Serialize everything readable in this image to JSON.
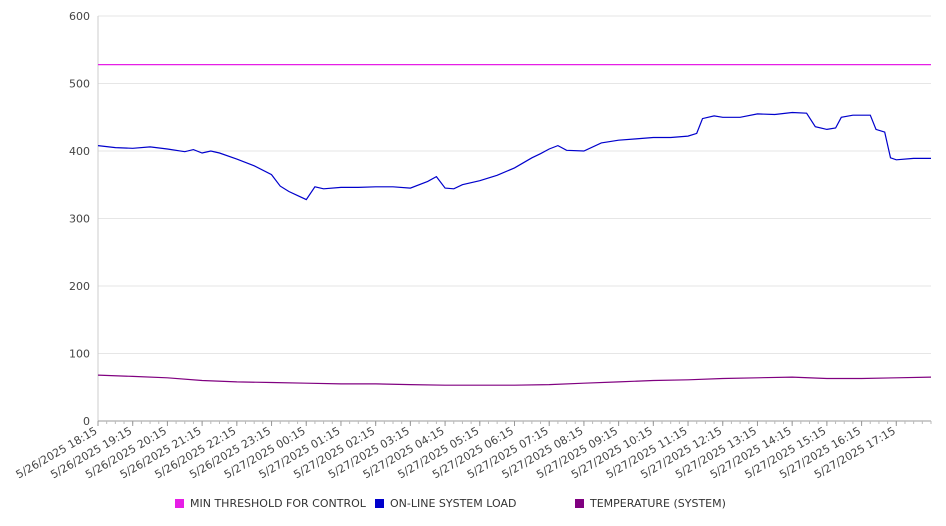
{
  "chart_data": {
    "type": "line",
    "title": "",
    "xlabel": "",
    "ylabel": "",
    "ylim": [
      0,
      600
    ],
    "yticks": [
      "0",
      "100",
      "200",
      "300",
      "400",
      "500",
      "600"
    ],
    "grid": true,
    "legend_position": "bottom",
    "xtick_labels": [
      "5/26/2025 18:15",
      "5/26/2025 19:15",
      "5/26/2025 20:15",
      "5/26/2025 21:15",
      "5/26/2025 22:15",
      "5/26/2025 23:15",
      "5/27/2025 00:15",
      "5/27/2025 01:15",
      "5/27/2025 02:15",
      "5/27/2025 03:15",
      "5/27/2025 04:15",
      "5/27/2025 05:15",
      "5/27/2025 06:15",
      "5/27/2025 07:15",
      "5/27/2025 08:15",
      "5/27/2025 09:15",
      "5/27/2025 10:15",
      "5/27/2025 11:15",
      "5/27/2025 12:15",
      "5/27/2025 13:15",
      "5/27/2025 14:15",
      "5/27/2025 15:15",
      "5/27/2025 16:15",
      "5/27/2025 17:15"
    ],
    "x_range": [
      "5/26/2025 18:15",
      "5/27/2025 18:15"
    ],
    "series": [
      {
        "name": "MIN THRESHOLD FOR CONTROL",
        "color": "#e61ee6",
        "points": [
          [
            "5/26/2025 18:15",
            528
          ],
          [
            "5/27/2025 18:15",
            528
          ]
        ]
      },
      {
        "name": "ON-LINE SYSTEM LOAD",
        "color": "#0000cc",
        "points": [
          [
            "5/26/2025 18:15",
            408
          ],
          [
            "5/26/2025 18:45",
            405
          ],
          [
            "5/26/2025 19:15",
            404
          ],
          [
            "5/26/2025 19:45",
            406
          ],
          [
            "5/26/2025 20:15",
            403
          ],
          [
            "5/26/2025 20:45",
            399
          ],
          [
            "5/26/2025 21:00",
            402
          ],
          [
            "5/26/2025 21:15",
            397
          ],
          [
            "5/26/2025 21:30",
            400
          ],
          [
            "5/26/2025 21:45",
            397
          ],
          [
            "5/26/2025 22:15",
            388
          ],
          [
            "5/26/2025 22:45",
            378
          ],
          [
            "5/26/2025 23:15",
            365
          ],
          [
            "5/26/2025 23:30",
            348
          ],
          [
            "5/26/2025 23:45",
            340
          ],
          [
            "5/27/2025 00:00",
            334
          ],
          [
            "5/27/2025 00:15",
            328
          ],
          [
            "5/27/2025 00:30",
            347
          ],
          [
            "5/27/2025 00:45",
            344
          ],
          [
            "5/27/2025 01:15",
            346
          ],
          [
            "5/27/2025 01:45",
            346
          ],
          [
            "5/27/2025 02:15",
            347
          ],
          [
            "5/27/2025 02:45",
            347
          ],
          [
            "5/27/2025 03:15",
            345
          ],
          [
            "5/27/2025 03:45",
            355
          ],
          [
            "5/27/2025 04:00",
            362
          ],
          [
            "5/27/2025 04:15",
            345
          ],
          [
            "5/27/2025 04:30",
            344
          ],
          [
            "5/27/2025 04:45",
            350
          ],
          [
            "5/27/2025 05:15",
            356
          ],
          [
            "5/27/2025 05:45",
            364
          ],
          [
            "5/27/2025 06:15",
            375
          ],
          [
            "5/27/2025 06:45",
            390
          ],
          [
            "5/27/2025 07:00",
            396
          ],
          [
            "5/27/2025 07:15",
            403
          ],
          [
            "5/27/2025 07:30",
            408
          ],
          [
            "5/27/2025 07:45",
            401
          ],
          [
            "5/27/2025 08:15",
            400
          ],
          [
            "5/27/2025 08:45",
            412
          ],
          [
            "5/27/2025 09:15",
            416
          ],
          [
            "5/27/2025 09:45",
            418
          ],
          [
            "5/27/2025 10:15",
            420
          ],
          [
            "5/27/2025 10:45",
            420
          ],
          [
            "5/27/2025 11:15",
            422
          ],
          [
            "5/27/2025 11:30",
            426
          ],
          [
            "5/27/2025 11:40",
            448
          ],
          [
            "5/27/2025 12:00",
            452
          ],
          [
            "5/27/2025 12:15",
            450
          ],
          [
            "5/27/2025 12:45",
            450
          ],
          [
            "5/27/2025 13:15",
            455
          ],
          [
            "5/27/2025 13:45",
            454
          ],
          [
            "5/27/2025 14:15",
            457
          ],
          [
            "5/27/2025 14:40",
            456
          ],
          [
            "5/27/2025 14:55",
            436
          ],
          [
            "5/27/2025 15:15",
            432
          ],
          [
            "5/27/2025 15:30",
            434
          ],
          [
            "5/27/2025 15:40",
            450
          ],
          [
            "5/27/2025 16:00",
            453
          ],
          [
            "5/27/2025 16:30",
            453
          ],
          [
            "5/27/2025 16:40",
            432
          ],
          [
            "5/27/2025 16:55",
            428
          ],
          [
            "5/27/2025 17:05",
            390
          ],
          [
            "5/27/2025 17:15",
            387
          ],
          [
            "5/27/2025 17:45",
            389
          ],
          [
            "5/27/2025 18:15",
            389
          ]
        ]
      },
      {
        "name": "TEMPERATURE (SYSTEM)",
        "color": "#800080",
        "points": [
          [
            "5/26/2025 18:15",
            68
          ],
          [
            "5/26/2025 19:15",
            66
          ],
          [
            "5/26/2025 20:15",
            64
          ],
          [
            "5/26/2025 21:15",
            60
          ],
          [
            "5/26/2025 22:15",
            58
          ],
          [
            "5/26/2025 23:15",
            57
          ],
          [
            "5/27/2025 00:15",
            56
          ],
          [
            "5/27/2025 01:15",
            55
          ],
          [
            "5/27/2025 02:15",
            55
          ],
          [
            "5/27/2025 03:15",
            54
          ],
          [
            "5/27/2025 04:15",
            53
          ],
          [
            "5/27/2025 05:15",
            53
          ],
          [
            "5/27/2025 06:15",
            53
          ],
          [
            "5/27/2025 07:15",
            54
          ],
          [
            "5/27/2025 08:15",
            56
          ],
          [
            "5/27/2025 09:15",
            58
          ],
          [
            "5/27/2025 10:15",
            60
          ],
          [
            "5/27/2025 11:15",
            61
          ],
          [
            "5/27/2025 12:15",
            63
          ],
          [
            "5/27/2025 13:15",
            64
          ],
          [
            "5/27/2025 14:15",
            65
          ],
          [
            "5/27/2025 15:15",
            63
          ],
          [
            "5/27/2025 16:15",
            63
          ],
          [
            "5/27/2025 17:15",
            64
          ],
          [
            "5/27/2025 18:15",
            65
          ]
        ]
      }
    ]
  },
  "legend": [
    {
      "label": "MIN THRESHOLD FOR CONTROL",
      "color": "#e61ee6"
    },
    {
      "label": "ON-LINE SYSTEM LOAD",
      "color": "#0000cc"
    },
    {
      "label": "TEMPERATURE (SYSTEM)",
      "color": "#800080"
    }
  ]
}
